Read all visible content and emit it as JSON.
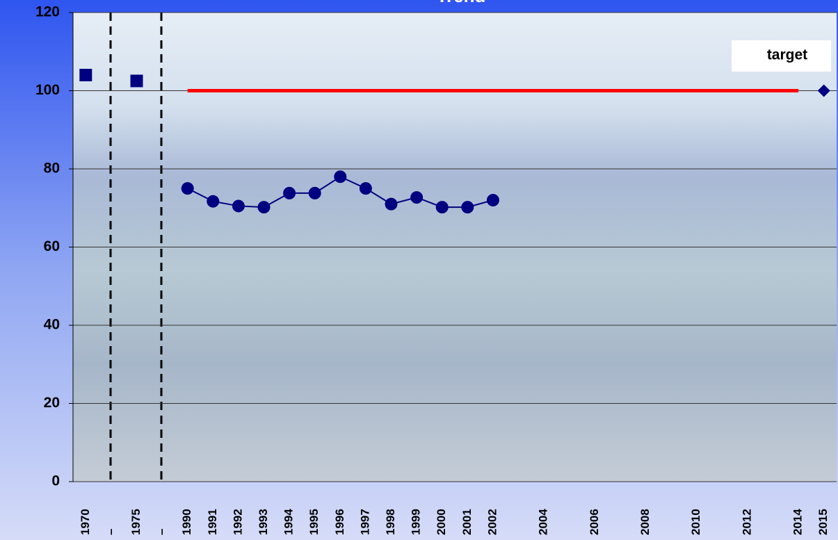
{
  "chart_data": {
    "type": "line",
    "title": "Trend",
    "annotation": "target",
    "categories": [
      "1970",
      "–",
      "1975",
      "–",
      "1990",
      "1991",
      "1992",
      "1993",
      "1994",
      "1995",
      "1996",
      "1997",
      "1998",
      "1999",
      "2000",
      "2001",
      "2002",
      null,
      "2004",
      null,
      "2006",
      null,
      "2008",
      null,
      "2010",
      null,
      "2012",
      null,
      "2014",
      "2015"
    ],
    "series": [
      {
        "color": "#000080",
        "marker": "square",
        "line": false,
        "values": [
          104,
          null,
          102.5,
          null,
          null,
          null,
          null,
          null,
          null,
          null,
          null,
          null,
          null,
          null,
          null,
          null,
          null,
          null,
          null,
          null,
          null,
          null,
          null,
          null,
          null,
          null,
          null,
          null,
          null,
          null
        ]
      },
      {
        "color": "#000080",
        "marker": "circle",
        "line": true,
        "values": [
          null,
          null,
          null,
          null,
          75,
          71.7,
          70.5,
          70.2,
          73.8,
          73.8,
          78,
          75,
          71,
          72.7,
          70.2,
          70.2,
          72,
          null,
          null,
          null,
          null,
          null,
          null,
          null,
          null,
          null,
          null,
          null,
          null,
          null
        ]
      },
      {
        "color": "#ff0000",
        "marker": "none",
        "line": true,
        "values": [
          null,
          null,
          null,
          null,
          100,
          100,
          100,
          100,
          100,
          100,
          100,
          100,
          100,
          100,
          100,
          100,
          100,
          100,
          100,
          100,
          100,
          100,
          100,
          100,
          100,
          100,
          100,
          100,
          100,
          null
        ]
      },
      {
        "color": "#000080",
        "marker": "diamond",
        "line": false,
        "values": [
          null,
          null,
          null,
          null,
          null,
          null,
          null,
          null,
          null,
          null,
          null,
          null,
          null,
          null,
          null,
          null,
          null,
          null,
          null,
          null,
          null,
          null,
          null,
          null,
          null,
          null,
          null,
          null,
          null,
          100
        ]
      }
    ],
    "ylim": [
      0,
      120
    ],
    "yticks": [
      0,
      20,
      40,
      60,
      80,
      100,
      120
    ],
    "grid": true
  }
}
